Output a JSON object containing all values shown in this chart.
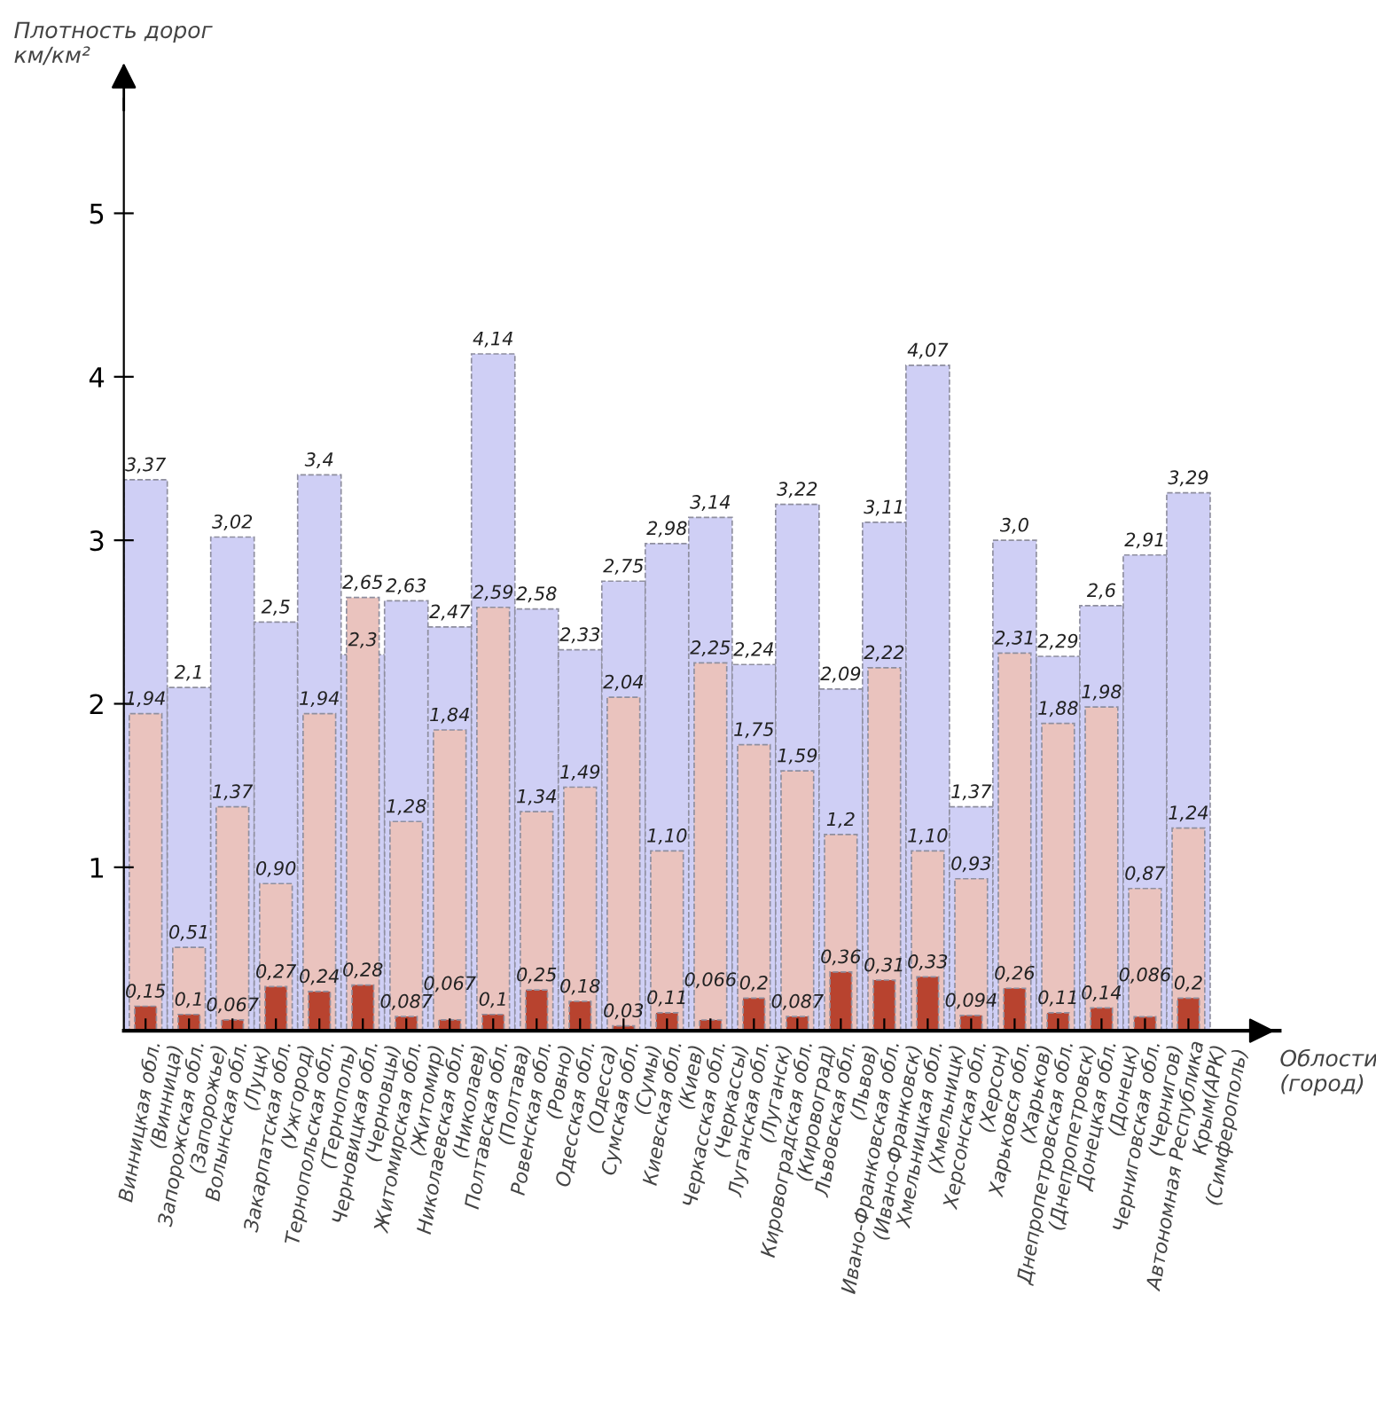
{
  "chart_data": {
    "type": "bar",
    "ylabel": "Плотность дорог\nкм/км²",
    "xlabel": "Облости\n(город)",
    "categories": [
      "Винницкая обл.\n(Винница)",
      "Запорожская обл.\n(Запорожье)",
      "Волынская обл.\n(Луцк)",
      "Закарпатская обл.\n(Ужгород)",
      "Тернопольская обл.\n(Тернополь)",
      "Черновицкая обл.\n(Черновцы)",
      "Житомирская обл.\n(Житомир)",
      "Николаевская обл.\n(Николаев)",
      "Полтавская обл.\n(Полтава)",
      "Ровенская обл.\n(Ровно)",
      "Одесская обл.\n(Одесса)",
      "Сумская обл.\n(Сумы)",
      "Киевская обл.\n(Киев)",
      "Черкасская обл.\n(Черкассы)",
      "Луганская обл.\n(Луганск)",
      "Кировоградская обл.\n(Кировоград)",
      "Львовская обл.\n(Львов)",
      "Ивано-Франковская обл.\n(Ивано-Франковск)",
      "Хмельницкая обл.\n(Хмельницк)",
      "Херсонская обл.\n(Херсон)",
      "Харьковся обл.\n(Харьков)",
      "Днепропетровская обл.\n(Днепропетровск)",
      "Донецкая обл.\n(Донецк)",
      "Черниговская обл.\n(Чернигов)",
      "Автономная Республика\nКрым(АРК)\n(Симферополь)"
    ],
    "series": [
      {
        "color": "#cfcff5",
        "values": [
          3.37,
          2.1,
          3.02,
          2.5,
          3.4,
          2.3,
          2.63,
          2.47,
          4.14,
          2.58,
          2.33,
          2.75,
          2.98,
          3.14,
          2.24,
          3.22,
          2.09,
          3.11,
          4.07,
          1.37,
          3.0,
          2.29,
          2.6,
          2.91,
          3.29
        ],
        "value_labels": [
          "3,37",
          "2,1",
          "3,02",
          "2,5",
          "3,4",
          "2,3",
          "2,63",
          "2,47",
          "4,14",
          "2,58",
          "2,33",
          "2,75",
          "2,98",
          "3,14",
          "2,24",
          "3,22",
          "2,09",
          "3,11",
          "4,07",
          "1,37",
          "3,0",
          "2,29",
          "2,6",
          "2,91",
          "3,29"
        ]
      },
      {
        "color": "#eac3be",
        "values": [
          1.94,
          0.51,
          1.37,
          0.9,
          1.94,
          2.65,
          1.28,
          1.84,
          2.59,
          1.34,
          1.49,
          2.04,
          1.1,
          2.25,
          1.75,
          1.59,
          1.2,
          2.22,
          1.1,
          0.93,
          2.31,
          1.88,
          1.98,
          0.87,
          1.24
        ],
        "value_labels": [
          "1,94",
          "0,51",
          "1,37",
          "0,90",
          "1,94",
          "2,65",
          "1,28",
          "1,84",
          "2,59",
          "1,34",
          "1,49",
          "2,04",
          "1,10",
          "2,25",
          "1,75",
          "1,59",
          "1,2",
          "2,22",
          "1,10",
          "0,93",
          "2,31",
          "1,88",
          "1,98",
          "0,87",
          "1,24"
        ]
      },
      {
        "color": "#b8432f",
        "values": [
          0.15,
          0.1,
          0.067,
          0.27,
          0.24,
          0.28,
          0.087,
          0.067,
          0.1,
          0.25,
          0.18,
          0.03,
          0.11,
          0.066,
          0.2,
          0.087,
          0.36,
          0.31,
          0.33,
          0.094,
          0.26,
          0.11,
          0.14,
          0.086,
          0.2
        ],
        "value_labels": [
          "0,15",
          "0,1",
          "0,067",
          "0,27",
          "0,24",
          "0,28",
          "0,087",
          "0,067",
          "0,1",
          "0,25",
          "0,18",
          "0,03",
          "0,11",
          "0,066",
          "0,2",
          "0,087",
          "0,36",
          "0,31",
          "0,33",
          "0,094",
          "0,26",
          "0,11",
          "0,14",
          "0,086",
          "0,2"
        ]
      }
    ],
    "ylim": [
      0,
      5.7
    ],
    "yticks": [
      1,
      2,
      3,
      4,
      5
    ],
    "grid": false
  }
}
